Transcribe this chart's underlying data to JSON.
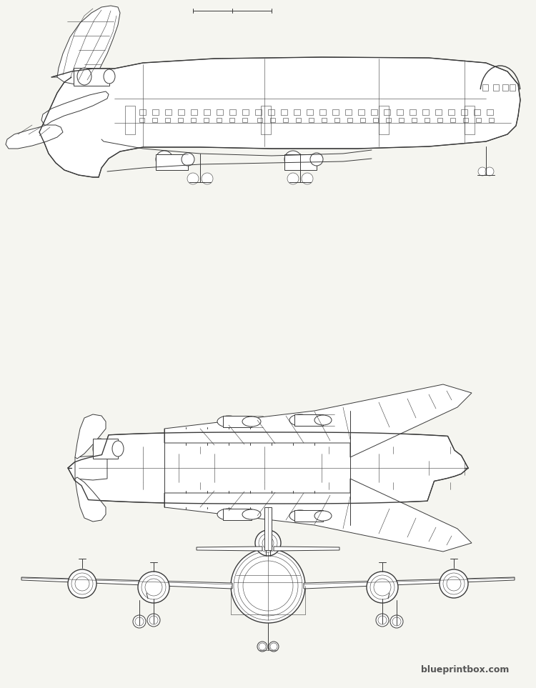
{
  "bg_color": "#f5f5f0",
  "line_color": "#3a3a3a",
  "line_width": 0.7,
  "thin_line": 0.4,
  "thick_line": 1.0,
  "watermark": "blueprintbox.com",
  "title_text": "",
  "fig_width": 7.5,
  "fig_height": 9.63,
  "dpi": 100
}
